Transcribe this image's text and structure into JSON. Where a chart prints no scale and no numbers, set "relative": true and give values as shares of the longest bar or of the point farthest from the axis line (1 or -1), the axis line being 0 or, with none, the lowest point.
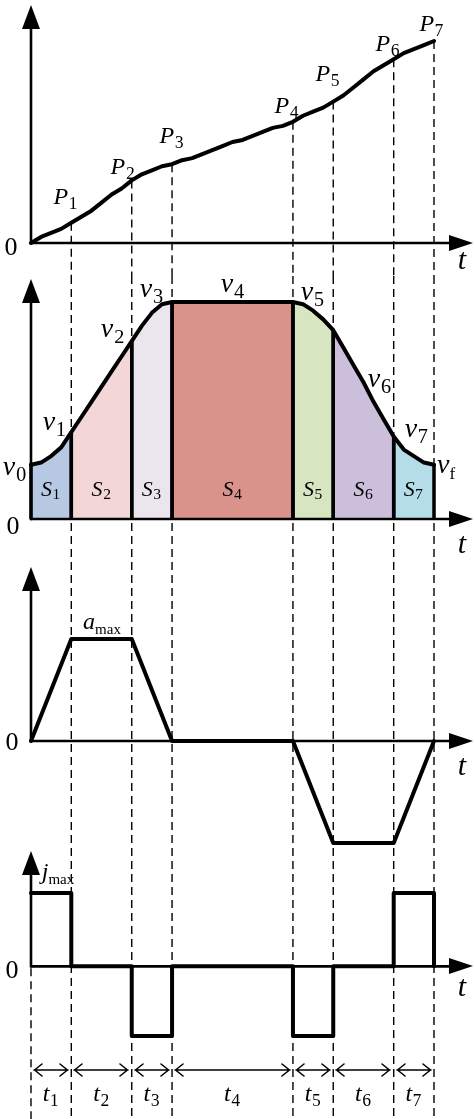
{
  "chart_data": [
    {
      "type": "line",
      "xlabel": "t",
      "relative": true,
      "tick_labels": false,
      "categories": [
        null,
        null,
        "t₁",
        null,
        null,
        null,
        null,
        "t₂",
        null,
        null,
        null,
        null,
        "t₃",
        null,
        null,
        null,
        null,
        null,
        null,
        null,
        "t₄",
        null,
        null,
        null,
        null,
        null,
        null,
        null,
        "t₅",
        null,
        null,
        null,
        null,
        "t₆",
        null,
        null,
        null,
        null,
        "t₇",
        null,
        null
      ],
      "series": [
        {
          "color": "#000000",
          "values": [
            0,
            0.03,
            0.05,
            0.07,
            0.1,
            0.13,
            0.16,
            0.2,
            0.24,
            0.27,
            0.31,
            0.34,
            0.36,
            0.38,
            0.39,
            0.41,
            0.42,
            0.44,
            0.46,
            0.48,
            0.5,
            0.51,
            0.53,
            0.55,
            0.57,
            0.58,
            0.6,
            0.63,
            0.65,
            0.67,
            0.7,
            0.73,
            0.77,
            0.81,
            0.85,
            0.88,
            0.91,
            0.94,
            0.96,
            0.98,
            1
          ]
        }
      ],
      "annotations": [
        "0",
        "P₁",
        "P₂",
        "P₃",
        "P₄",
        "P₅",
        "P₆",
        "P₇"
      ]
    },
    {
      "type": "area",
      "xlabel": "t",
      "relative": true,
      "tick_labels": false,
      "categories": [
        null,
        null,
        "t₁",
        null,
        null,
        null,
        null,
        "t₂",
        null,
        null,
        null,
        null,
        "t₃",
        null,
        null,
        null,
        null,
        null,
        null,
        null,
        "t₄",
        null,
        null,
        null,
        null,
        null,
        null,
        null,
        "t₅",
        null,
        null,
        null,
        null,
        "t₆",
        null,
        null,
        null,
        null,
        "t₇",
        null,
        null
      ],
      "series": [
        {
          "type": "line",
          "color": "#000000",
          "values": [
            0.25,
            0.26,
            0.29,
            0.33,
            0.4,
            0.47,
            0.54,
            0.61,
            0.68,
            0.75,
            0.82,
            0.89,
            0.95,
            0.99,
            1,
            1,
            1,
            1,
            1,
            1,
            1,
            1,
            1,
            1,
            1,
            1,
            1,
            0.99,
            0.96,
            0.92,
            0.87,
            0.79,
            0.71,
            0.63,
            0.54,
            0.46,
            0.38,
            0.32,
            0.29,
            0.26,
            0.25
          ]
        },
        {
          "name": "S₁",
          "color": "#b7c9e2",
          "values": [
            0.25,
            0.26,
            0.29,
            0.33,
            0.4,
            null,
            null,
            null,
            null,
            null,
            null,
            null,
            null,
            null,
            null,
            null,
            null,
            null,
            null,
            null,
            null,
            null,
            null,
            null,
            null,
            null,
            null,
            null,
            null,
            null,
            null,
            null,
            null,
            null,
            null,
            null,
            null,
            null,
            null,
            null,
            null
          ]
        },
        {
          "name": "S₂",
          "color": "#f3d6d6",
          "values": [
            null,
            null,
            null,
            null,
            0.4,
            0.47,
            0.54,
            0.61,
            0.68,
            0.75,
            0.82,
            null,
            null,
            null,
            null,
            null,
            null,
            null,
            null,
            null,
            null,
            null,
            null,
            null,
            null,
            null,
            null,
            null,
            null,
            null,
            null,
            null,
            null,
            null,
            null,
            null,
            null,
            null,
            null,
            null,
            null
          ]
        },
        {
          "name": "S₃",
          "color": "#ebe5ee",
          "values": [
            null,
            null,
            null,
            null,
            null,
            null,
            null,
            null,
            null,
            null,
            0.82,
            0.89,
            0.95,
            0.99,
            1,
            null,
            null,
            null,
            null,
            null,
            null,
            null,
            null,
            null,
            null,
            null,
            null,
            null,
            null,
            null,
            null,
            null,
            null,
            null,
            null,
            null,
            null,
            null,
            null,
            null,
            null
          ]
        },
        {
          "name": "S₄",
          "color": "#d9938b",
          "values": [
            null,
            null,
            null,
            null,
            null,
            null,
            null,
            null,
            null,
            null,
            null,
            null,
            null,
            null,
            1,
            1,
            1,
            1,
            1,
            1,
            1,
            1,
            1,
            1,
            1,
            1,
            1,
            null,
            null,
            null,
            null,
            null,
            null,
            null,
            null,
            null,
            null,
            null,
            null,
            null,
            null
          ]
        },
        {
          "name": "S₅",
          "color": "#d7e5c0",
          "values": [
            null,
            null,
            null,
            null,
            null,
            null,
            null,
            null,
            null,
            null,
            null,
            null,
            null,
            null,
            null,
            null,
            null,
            null,
            null,
            null,
            null,
            null,
            null,
            null,
            null,
            null,
            1,
            0.99,
            0.96,
            0.92,
            0.87,
            null,
            null,
            null,
            null,
            null,
            null,
            null,
            null,
            null,
            null
          ]
        },
        {
          "name": "S₆",
          "color": "#cbbfdc",
          "values": [
            null,
            null,
            null,
            null,
            null,
            null,
            null,
            null,
            null,
            null,
            null,
            null,
            null,
            null,
            null,
            null,
            null,
            null,
            null,
            null,
            null,
            null,
            null,
            null,
            null,
            null,
            null,
            null,
            null,
            null,
            0.87,
            0.79,
            0.71,
            0.63,
            0.54,
            0.46,
            0.38,
            null,
            null,
            null,
            null
          ]
        },
        {
          "name": "S₇",
          "color": "#b5dde7",
          "values": [
            null,
            null,
            null,
            null,
            null,
            null,
            null,
            null,
            null,
            null,
            null,
            null,
            null,
            null,
            null,
            null,
            null,
            null,
            null,
            null,
            null,
            null,
            null,
            null,
            null,
            null,
            null,
            null,
            null,
            null,
            null,
            null,
            null,
            null,
            null,
            null,
            0.38,
            0.32,
            0.29,
            0.26,
            0.25
          ]
        }
      ],
      "annotations": [
        "0",
        "v₀",
        "v₁",
        "v₂",
        "v₃",
        "v₄",
        "v₅",
        "v₆",
        "v₇",
        "v$_{f}$"
      ]
    },
    {
      "type": "line",
      "xlabel": "t",
      "relative": true,
      "tick_labels": false,
      "categories": [
        null,
        null,
        "t₁",
        null,
        null,
        null,
        null,
        "t₂",
        null,
        null,
        null,
        null,
        "t₃",
        null,
        null,
        null,
        null,
        null,
        null,
        null,
        "t₄",
        null,
        null,
        null,
        null,
        null,
        null,
        null,
        "t₅",
        null,
        null,
        null,
        null,
        "t₆",
        null,
        null,
        null,
        null,
        "t₇",
        null,
        null
      ],
      "series": [
        {
          "color": "#000000",
          "values": [
            0,
            0.25,
            0.5,
            0.75,
            1,
            1,
            1,
            1,
            1,
            1,
            1,
            0.75,
            0.5,
            0.25,
            0,
            0,
            0,
            0,
            0,
            0,
            0,
            0,
            0,
            0,
            0,
            0,
            0,
            -0.25,
            -0.5,
            -0.75,
            -1,
            -1,
            -1,
            -1,
            -1,
            -1,
            -1,
            -0.75,
            -0.5,
            -0.25,
            0
          ]
        }
      ],
      "annotations": [
        "0",
        "a$_{max}$"
      ]
    },
    {
      "type": "step",
      "xlabel": "t",
      "relative": true,
      "tick_labels": "x",
      "categories": [
        null,
        null,
        "t₁",
        null,
        null,
        null,
        null,
        "t₂",
        null,
        null,
        null,
        null,
        "t₃",
        null,
        null,
        null,
        null,
        null,
        null,
        null,
        "t₄",
        null,
        null,
        null,
        null,
        null,
        null,
        null,
        "t₅",
        null,
        null,
        null,
        null,
        "t₆",
        null,
        null,
        null,
        null,
        "t₇",
        null,
        null
      ],
      "series": [
        {
          "color": "#000000",
          "values": [
            1,
            1,
            1,
            1,
            0,
            0,
            0,
            0,
            0,
            0,
            -0.95,
            -0.95,
            -0.95,
            -0.95,
            0,
            0,
            0,
            0,
            0,
            0,
            0,
            0,
            0,
            0,
            0,
            0,
            -0.95,
            -0.95,
            -0.95,
            -0.95,
            0,
            0,
            0,
            0,
            0,
            0,
            1,
            1,
            1,
            1,
            0
          ]
        }
      ],
      "annotations": [
        "0",
        "j$_{max}$"
      ]
    }
  ]
}
